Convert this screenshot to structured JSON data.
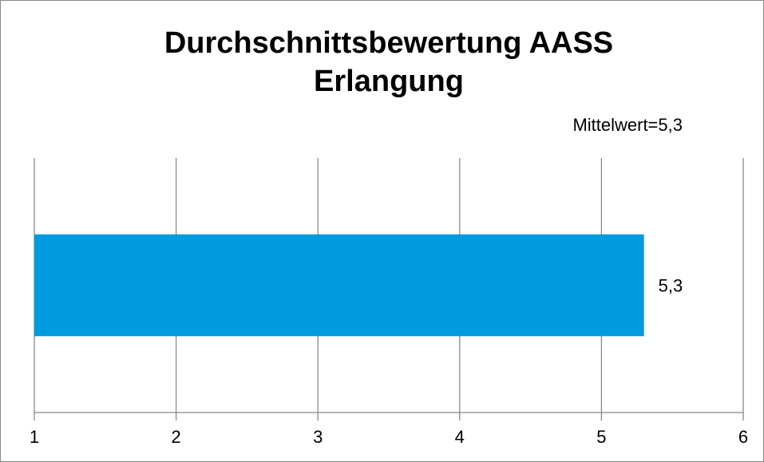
{
  "chart_data": {
    "type": "bar",
    "orientation": "horizontal",
    "title": "Durchschnittsbewertung AASS Erlangung",
    "annotation": "Mittelwert=5,3",
    "categories": [
      null
    ],
    "values": [
      5.3
    ],
    "value_labels": [
      "5,3"
    ],
    "color": "#009ade",
    "xlim": [
      1,
      6
    ],
    "xticks": [
      1,
      2,
      3,
      4,
      5,
      6
    ],
    "grid": true
  }
}
